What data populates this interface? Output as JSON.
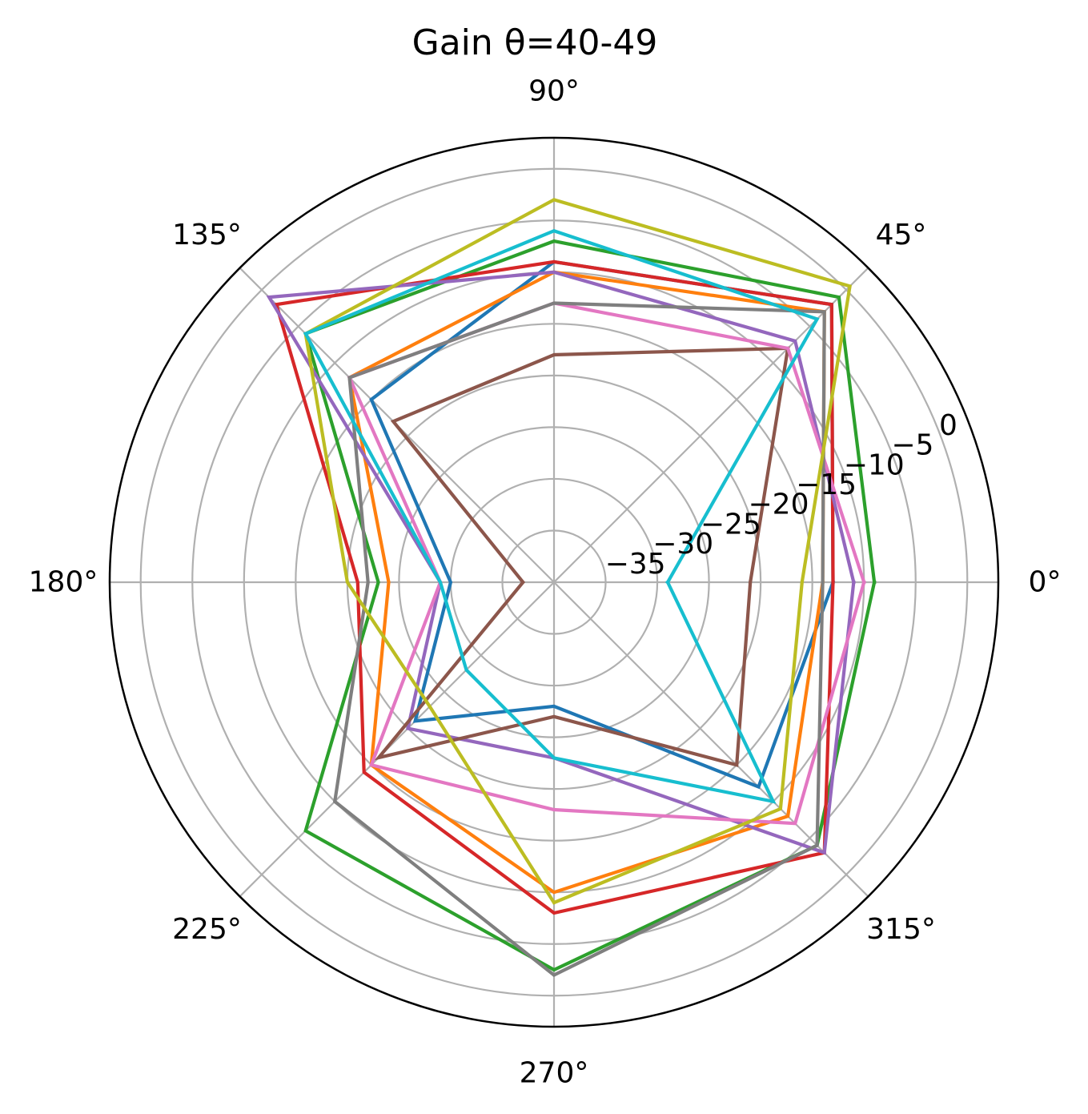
{
  "chart_data": {
    "type": "line",
    "projection": "polar",
    "title": "Gain θ=40-49",
    "theta_unit": "degrees",
    "theta_ticks": [
      0,
      45,
      90,
      135,
      180,
      225,
      270,
      315
    ],
    "theta_tick_labels": [
      "0°",
      "45°",
      "90°",
      "135°",
      "180°",
      "225°",
      "270°",
      "315°"
    ],
    "r_ticks": [
      -35,
      -30,
      -25,
      -20,
      -15,
      -10,
      -5,
      0
    ],
    "r_tick_labels": [
      "−35",
      "−30",
      "−25",
      "−20",
      "−15",
      "−10",
      "−5",
      "0"
    ],
    "r_label_angle": 22.5,
    "rlim": [
      -40,
      3
    ],
    "grid": true,
    "theta": [
      0,
      45,
      90,
      135,
      180,
      225,
      270,
      315
    ],
    "series": [
      {
        "color": "#1f77b4",
        "values": [
          -13,
          -2,
          -9,
          -15,
          -30,
          -21,
          -28,
          -12
        ]
      },
      {
        "color": "#ff7f0e",
        "values": [
          -14,
          -3,
          -10,
          -12,
          -24,
          -15,
          -10,
          -8
        ]
      },
      {
        "color": "#2ca02c",
        "values": [
          -9,
          -1,
          -7,
          -6,
          -23,
          -6,
          -2.5,
          -4
        ]
      },
      {
        "color": "#d62728",
        "values": [
          -13,
          -2,
          -9,
          -2,
          -21,
          -14,
          -8,
          -3
        ]
      },
      {
        "color": "#9467bd",
        "values": [
          -11,
          -7,
          -10,
          -1,
          -29,
          -20,
          -23,
          -3
        ]
      },
      {
        "color": "#8c564b",
        "values": [
          -21,
          -8,
          -18,
          -18,
          -37,
          -16,
          -27,
          -15
        ]
      },
      {
        "color": "#e377c2",
        "values": [
          -10,
          -8,
          -13,
          -12,
          -29,
          -15,
          -18,
          -7
        ]
      },
      {
        "color": "#7f7f7f",
        "values": [
          -14,
          -3,
          -13,
          -12,
          -22,
          -10,
          -2,
          -4
        ]
      },
      {
        "color": "#bcbd22",
        "values": [
          -16,
          0.5,
          -3,
          -6,
          -20,
          -23,
          -9,
          -9
        ]
      },
      {
        "color": "#17becf",
        "values": [
          -29,
          -4,
          -6,
          -6,
          -29,
          -28,
          -23,
          -10
        ]
      }
    ]
  }
}
